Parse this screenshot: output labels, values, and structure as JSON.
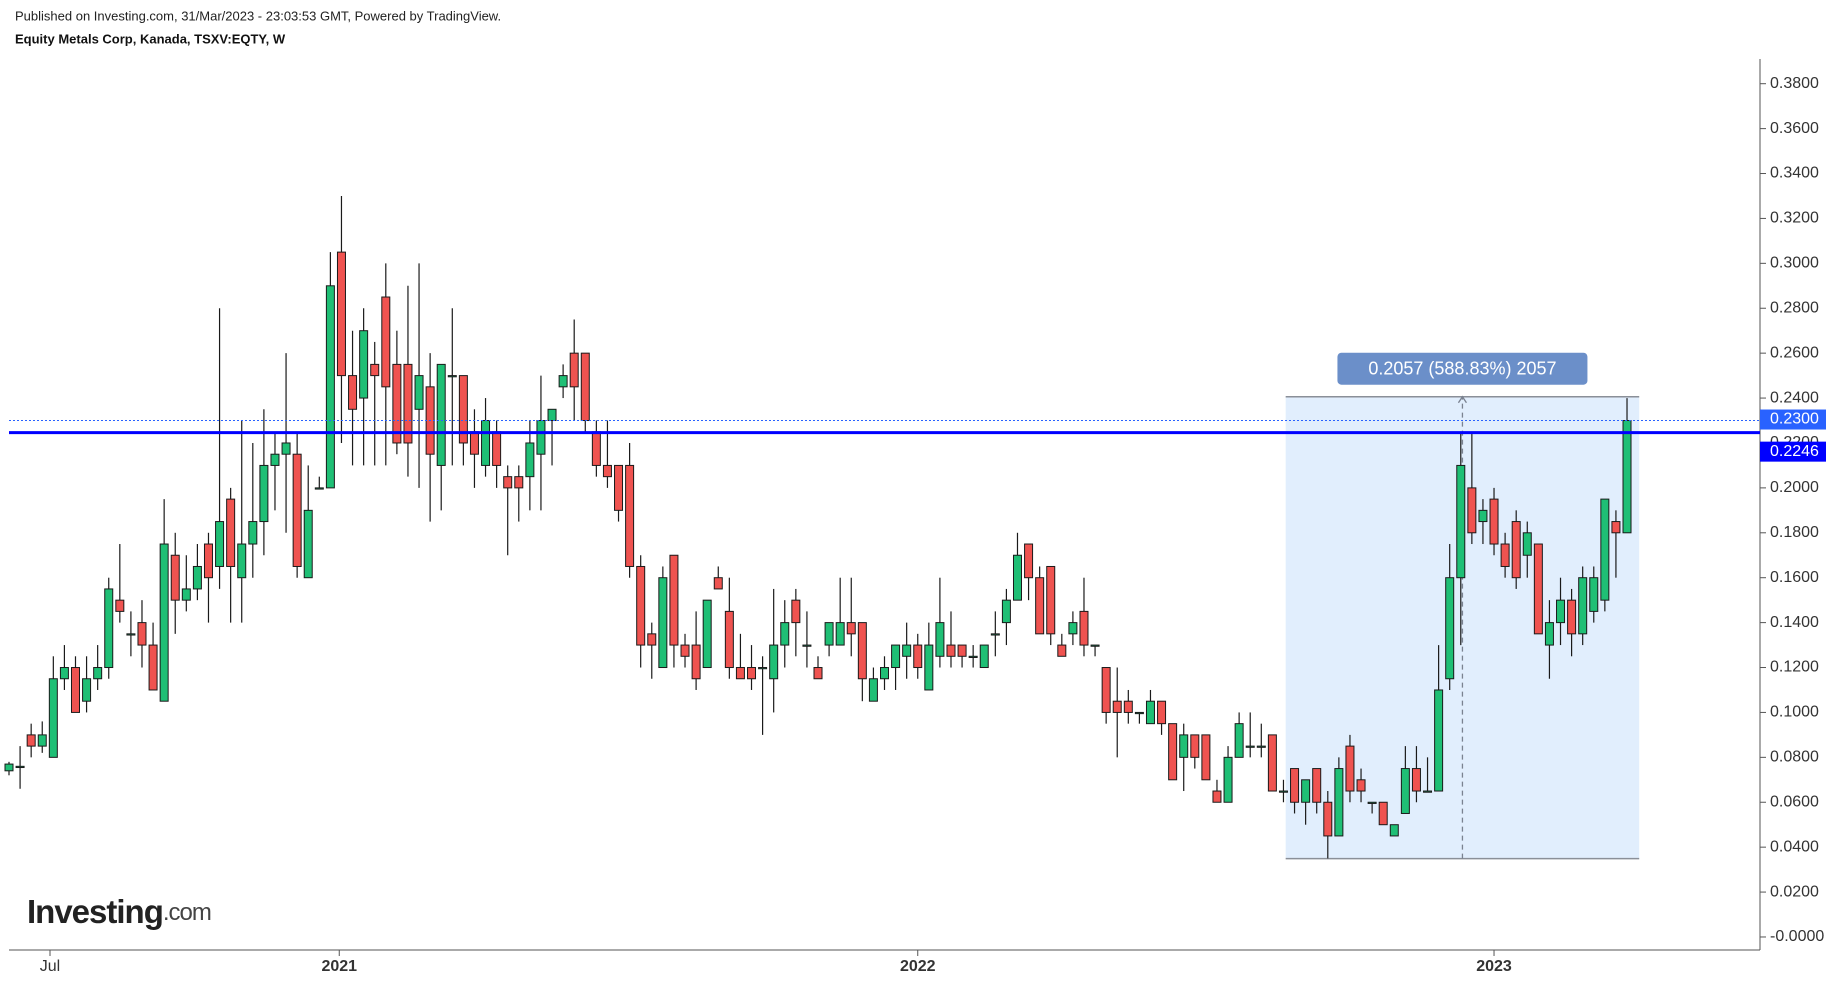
{
  "header": {
    "published": "Published on Investing.com, 31/Mar/2023 - 23:03:53 GMT, Powered by TradingView.",
    "symbol": "Equity Metals Corp, Kanada, TSXV:EQTY, W"
  },
  "logo": {
    "brand": "Investing",
    "suffix": ".com"
  },
  "chart_data": {
    "type": "candlestick",
    "up_color": "#1fbf75",
    "down_color": "#ef5350",
    "open": [
      0.074,
      0.076,
      0.09,
      0.085,
      0.08,
      0.115,
      0.12,
      0.105,
      0.115,
      0.12,
      0.15,
      0.135,
      0.14,
      0.13,
      0.105,
      0.17,
      0.15,
      0.155,
      0.175,
      0.165,
      0.195,
      0.16,
      0.175,
      0.185,
      0.21,
      0.215,
      0.215,
      0.16,
      0.2,
      0.2,
      0.305,
      0.25,
      0.24,
      0.255,
      0.285,
      0.255,
      0.255,
      0.235,
      0.245,
      0.21,
      0.25,
      0.25,
      0.225,
      0.21,
      0.225,
      0.205,
      0.205,
      0.205,
      0.215,
      0.23,
      0.245,
      0.26,
      0.26,
      0.225,
      0.21,
      0.21,
      0.21,
      0.165,
      0.135,
      0.12,
      0.17,
      0.13,
      0.13,
      0.12,
      0.16,
      0.145,
      0.12,
      0.12,
      0.12,
      0.115,
      0.13,
      0.15,
      0.13,
      0.12,
      0.13,
      0.13,
      0.14,
      0.14,
      0.105,
      0.115,
      0.12,
      0.125,
      0.13,
      0.11,
      0.125,
      0.13,
      0.13,
      0.125,
      0.12,
      0.135,
      0.14,
      0.15,
      0.175,
      0.16,
      0.165,
      0.13,
      0.135,
      0.145,
      0.13,
      0.12,
      0.105,
      0.105,
      0.1,
      0.095,
      0.105,
      0.095,
      0.08,
      0.09,
      0.09,
      0.065,
      0.06,
      0.08,
      0.085,
      0.085,
      0.09,
      0.065,
      0.075,
      0.06,
      0.075,
      0.06,
      0.045,
      0.085,
      0.07,
      0.06,
      0.06,
      0.045,
      0.055,
      0.075,
      0.065,
      0.065,
      0.115,
      0.16,
      0.2,
      0.185,
      0.195,
      0.175,
      0.185,
      0.17,
      0.175,
      0.13,
      0.14,
      0.15,
      0.135,
      0.145,
      0.15,
      0.185,
      0.18
    ],
    "high": [
      0.078,
      0.085,
      0.095,
      0.096,
      0.125,
      0.13,
      0.125,
      0.125,
      0.13,
      0.16,
      0.175,
      0.145,
      0.15,
      0.14,
      0.195,
      0.18,
      0.17,
      0.175,
      0.18,
      0.28,
      0.2,
      0.23,
      0.22,
      0.235,
      0.225,
      0.26,
      0.225,
      0.21,
      0.205,
      0.305,
      0.33,
      0.27,
      0.28,
      0.265,
      0.3,
      0.27,
      0.29,
      0.3,
      0.26,
      0.255,
      0.28,
      0.25,
      0.235,
      0.24,
      0.23,
      0.21,
      0.21,
      0.23,
      0.25,
      0.235,
      0.255,
      0.275,
      0.26,
      0.23,
      0.23,
      0.21,
      0.22,
      0.17,
      0.14,
      0.165,
      0.17,
      0.135,
      0.145,
      0.15,
      0.165,
      0.16,
      0.135,
      0.13,
      0.125,
      0.155,
      0.15,
      0.155,
      0.145,
      0.125,
      0.14,
      0.16,
      0.16,
      0.14,
      0.12,
      0.125,
      0.13,
      0.14,
      0.135,
      0.14,
      0.16,
      0.145,
      0.13,
      0.13,
      0.13,
      0.145,
      0.155,
      0.18,
      0.175,
      0.165,
      0.165,
      0.135,
      0.145,
      0.16,
      0.13,
      0.12,
      0.12,
      0.11,
      0.1,
      0.11,
      0.105,
      0.095,
      0.095,
      0.09,
      0.09,
      0.07,
      0.085,
      0.1,
      0.1,
      0.095,
      0.09,
      0.07,
      0.075,
      0.07,
      0.075,
      0.065,
      0.08,
      0.09,
      0.075,
      0.06,
      0.06,
      0.05,
      0.085,
      0.085,
      0.08,
      0.13,
      0.175,
      0.225,
      0.225,
      0.195,
      0.2,
      0.18,
      0.19,
      0.185,
      0.175,
      0.15,
      0.16,
      0.155,
      0.165,
      0.165,
      0.195,
      0.19,
      0.24
    ],
    "low": [
      0.072,
      0.066,
      0.08,
      0.082,
      0.08,
      0.11,
      0.1,
      0.1,
      0.11,
      0.115,
      0.14,
      0.125,
      0.12,
      0.11,
      0.105,
      0.135,
      0.145,
      0.15,
      0.14,
      0.155,
      0.14,
      0.14,
      0.16,
      0.17,
      0.19,
      0.18,
      0.16,
      0.16,
      0.2,
      0.2,
      0.22,
      0.21,
      0.21,
      0.21,
      0.21,
      0.215,
      0.205,
      0.2,
      0.185,
      0.19,
      0.21,
      0.21,
      0.2,
      0.205,
      0.2,
      0.17,
      0.185,
      0.19,
      0.19,
      0.21,
      0.24,
      0.23,
      0.225,
      0.205,
      0.2,
      0.185,
      0.16,
      0.12,
      0.115,
      0.12,
      0.12,
      0.12,
      0.11,
      0.12,
      0.155,
      0.115,
      0.115,
      0.11,
      0.09,
      0.1,
      0.12,
      0.125,
      0.12,
      0.115,
      0.125,
      0.13,
      0.125,
      0.105,
      0.105,
      0.11,
      0.11,
      0.115,
      0.115,
      0.11,
      0.12,
      0.12,
      0.12,
      0.12,
      0.12,
      0.125,
      0.13,
      0.15,
      0.15,
      0.135,
      0.13,
      0.125,
      0.13,
      0.125,
      0.125,
      0.095,
      0.08,
      0.095,
      0.095,
      0.095,
      0.09,
      0.07,
      0.065,
      0.075,
      0.07,
      0.06,
      0.06,
      0.08,
      0.08,
      0.08,
      0.065,
      0.06,
      0.055,
      0.05,
      0.055,
      0.035,
      0.045,
      0.06,
      0.06,
      0.055,
      0.05,
      0.045,
      0.055,
      0.06,
      0.065,
      0.065,
      0.11,
      0.13,
      0.175,
      0.175,
      0.17,
      0.16,
      0.155,
      0.16,
      0.135,
      0.115,
      0.13,
      0.125,
      0.13,
      0.14,
      0.145,
      0.16,
      0.18
    ],
    "close": [
      0.077,
      0.076,
      0.085,
      0.09,
      0.115,
      0.12,
      0.1,
      0.115,
      0.12,
      0.155,
      0.145,
      0.135,
      0.13,
      0.11,
      0.175,
      0.15,
      0.155,
      0.165,
      0.16,
      0.185,
      0.165,
      0.175,
      0.185,
      0.21,
      0.215,
      0.22,
      0.165,
      0.19,
      0.2,
      0.29,
      0.25,
      0.235,
      0.27,
      0.25,
      0.245,
      0.22,
      0.22,
      0.25,
      0.215,
      0.255,
      0.25,
      0.22,
      0.215,
      0.23,
      0.21,
      0.2,
      0.2,
      0.22,
      0.23,
      0.235,
      0.25,
      0.245,
      0.23,
      0.21,
      0.205,
      0.19,
      0.165,
      0.13,
      0.13,
      0.16,
      0.13,
      0.125,
      0.115,
      0.15,
      0.155,
      0.12,
      0.115,
      0.115,
      0.12,
      0.13,
      0.14,
      0.14,
      0.13,
      0.115,
      0.14,
      0.14,
      0.135,
      0.115,
      0.115,
      0.12,
      0.13,
      0.13,
      0.12,
      0.13,
      0.14,
      0.125,
      0.125,
      0.125,
      0.13,
      0.135,
      0.15,
      0.17,
      0.16,
      0.135,
      0.135,
      0.125,
      0.14,
      0.13,
      0.13,
      0.1,
      0.1,
      0.1,
      0.1,
      0.105,
      0.095,
      0.07,
      0.09,
      0.08,
      0.07,
      0.06,
      0.08,
      0.095,
      0.085,
      0.085,
      0.065,
      0.065,
      0.06,
      0.07,
      0.06,
      0.045,
      0.075,
      0.065,
      0.065,
      0.06,
      0.05,
      0.05,
      0.075,
      0.065,
      0.065,
      0.11,
      0.16,
      0.21,
      0.18,
      0.19,
      0.175,
      0.165,
      0.16,
      0.18,
      0.135,
      0.14,
      0.15,
      0.135,
      0.16,
      0.16,
      0.195,
      0.18,
      0.23
    ],
    "xlim": [
      0,
      158
    ],
    "xticks": [
      {
        "value": 3.7,
        "label": "Jul"
      },
      {
        "value": 29.8,
        "label": "2021"
      },
      {
        "value": 82,
        "label": "2022"
      },
      {
        "value": 134,
        "label": "2023"
      }
    ],
    "ylim": [
      -0.0058,
      0.391
    ],
    "yticks": [
      {
        "value": 0,
        "label": "-0.0000"
      },
      {
        "value": 0.02,
        "label": "0.0200"
      },
      {
        "value": 0.04,
        "label": "0.0400"
      },
      {
        "value": 0.06,
        "label": "0.0600"
      },
      {
        "value": 0.08,
        "label": "0.0800"
      },
      {
        "value": 0.1,
        "label": "0.1000"
      },
      {
        "value": 0.12,
        "label": "0.1200"
      },
      {
        "value": 0.14,
        "label": "0.1400"
      },
      {
        "value": 0.16,
        "label": "0.1600"
      },
      {
        "value": 0.18,
        "label": "0.1800"
      },
      {
        "value": 0.2,
        "label": "0.2000"
      },
      {
        "value": 0.22,
        "label": "0.2200"
      },
      {
        "value": 0.24,
        "label": "0.2400"
      },
      {
        "value": 0.26,
        "label": "0.2600"
      },
      {
        "value": 0.28,
        "label": "0.2800"
      },
      {
        "value": 0.3,
        "label": "0.3000"
      },
      {
        "value": 0.32,
        "label": "0.3200"
      },
      {
        "value": 0.34,
        "label": "0.3400"
      },
      {
        "value": 0.36,
        "label": "0.3600"
      },
      {
        "value": 0.38,
        "label": "0.3800"
      }
    ],
    "last_price": {
      "value": 0.23,
      "label": "0.2300",
      "color": "#2962ff"
    },
    "hline": {
      "value": 0.2246,
      "label": "0.2246",
      "color": "#0000ff"
    },
    "measure": {
      "from_x": 115.2,
      "to_x": 147.1,
      "low": 0.0349,
      "high": 0.2406,
      "label": "0.2057 (588.83%) 2057",
      "color": "#6b8fc9"
    }
  }
}
